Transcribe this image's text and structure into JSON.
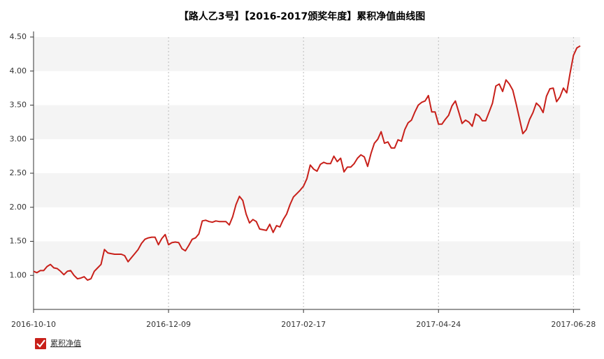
{
  "chart_data": {
    "type": "line",
    "title": "【路人乙3号】【2016-2017颁奖年度】累积净值曲线图",
    "categories": [
      "2016-10-10",
      null,
      null,
      null,
      null,
      null,
      null,
      null,
      null,
      null,
      null,
      null,
      null,
      null,
      null,
      null,
      null,
      null,
      null,
      null,
      null,
      null,
      null,
      null,
      null,
      null,
      null,
      null,
      null,
      null,
      null,
      null,
      null,
      null,
      null,
      null,
      null,
      null,
      null,
      null,
      "2016-12-09",
      null,
      null,
      null,
      null,
      null,
      null,
      null,
      null,
      null,
      null,
      null,
      null,
      null,
      null,
      null,
      null,
      null,
      null,
      null,
      null,
      null,
      null,
      null,
      null,
      null,
      null,
      null,
      null,
      null,
      null,
      null,
      null,
      null,
      null,
      null,
      null,
      null,
      null,
      null,
      "2017-02-17",
      null,
      null,
      null,
      null,
      null,
      null,
      null,
      null,
      null,
      null,
      null,
      null,
      null,
      null,
      null,
      null,
      null,
      null,
      null,
      null,
      null,
      null,
      null,
      null,
      null,
      null,
      null,
      null,
      null,
      null,
      null,
      null,
      null,
      null,
      null,
      null,
      null,
      null,
      null,
      "2017-04-24",
      null,
      null,
      null,
      null,
      null,
      null,
      null,
      null,
      null,
      null,
      null,
      null,
      null,
      null,
      null,
      null,
      null,
      null,
      null,
      null,
      null,
      null,
      null,
      null,
      null,
      null,
      null,
      null,
      null,
      null,
      null,
      null,
      null,
      null,
      null,
      null,
      null,
      null,
      null,
      "2017-06-28",
      null,
      null
    ],
    "series": [
      {
        "name": "累积净值",
        "color": "#c8201a",
        "values": [
          1.06,
          1.04,
          1.07,
          1.07,
          1.13,
          1.16,
          1.11,
          1.1,
          1.06,
          1.01,
          1.06,
          1.07,
          1.0,
          0.95,
          0.96,
          0.98,
          0.93,
          0.95,
          1.06,
          1.11,
          1.16,
          1.38,
          1.33,
          1.32,
          1.31,
          1.31,
          1.31,
          1.29,
          1.2,
          1.26,
          1.32,
          1.38,
          1.47,
          1.53,
          1.55,
          1.56,
          1.56,
          1.45,
          1.54,
          1.6,
          1.45,
          1.48,
          1.49,
          1.48,
          1.39,
          1.36,
          1.44,
          1.53,
          1.55,
          1.61,
          1.8,
          1.81,
          1.79,
          1.78,
          1.8,
          1.79,
          1.79,
          1.79,
          1.74,
          1.86,
          2.04,
          2.16,
          2.1,
          1.9,
          1.77,
          1.82,
          1.79,
          1.68,
          1.67,
          1.66,
          1.75,
          1.63,
          1.73,
          1.71,
          1.82,
          1.9,
          2.04,
          2.15,
          2.2,
          2.25,
          2.31,
          2.42,
          2.62,
          2.56,
          2.53,
          2.63,
          2.66,
          2.64,
          2.64,
          2.75,
          2.67,
          2.72,
          2.52,
          2.59,
          2.59,
          2.64,
          2.72,
          2.77,
          2.74,
          2.6,
          2.79,
          2.94,
          3.0,
          3.11,
          2.94,
          2.96,
          2.87,
          2.87,
          2.99,
          2.97,
          3.14,
          3.24,
          3.28,
          3.4,
          3.5,
          3.54,
          3.56,
          3.64,
          3.4,
          3.4,
          3.22,
          3.22,
          3.29,
          3.35,
          3.49,
          3.56,
          3.4,
          3.23,
          3.28,
          3.25,
          3.19,
          3.37,
          3.34,
          3.27,
          3.27,
          3.4,
          3.53,
          3.78,
          3.81,
          3.7,
          3.87,
          3.81,
          3.72,
          3.52,
          3.3,
          3.08,
          3.14,
          3.29,
          3.39,
          3.53,
          3.48,
          3.39,
          3.63,
          3.74,
          3.75,
          3.55,
          3.62,
          3.75,
          3.68,
          3.97,
          4.23,
          4.34,
          4.37
        ]
      }
    ],
    "ylim": [
      0.5,
      4.5
    ],
    "yticks": [
      {
        "value": 1,
        "label": "1.00"
      },
      {
        "value": 1.5,
        "label": "1.50"
      },
      {
        "value": 2,
        "label": "2.00"
      },
      {
        "value": 2.5,
        "label": "2.50"
      },
      {
        "value": 3,
        "label": "3.00"
      },
      {
        "value": 3.5,
        "label": "3.50"
      },
      {
        "value": 4,
        "label": "4.00"
      },
      {
        "value": 4.5,
        "label": "4.50"
      }
    ],
    "grid": true,
    "legend": "bottom-left"
  }
}
